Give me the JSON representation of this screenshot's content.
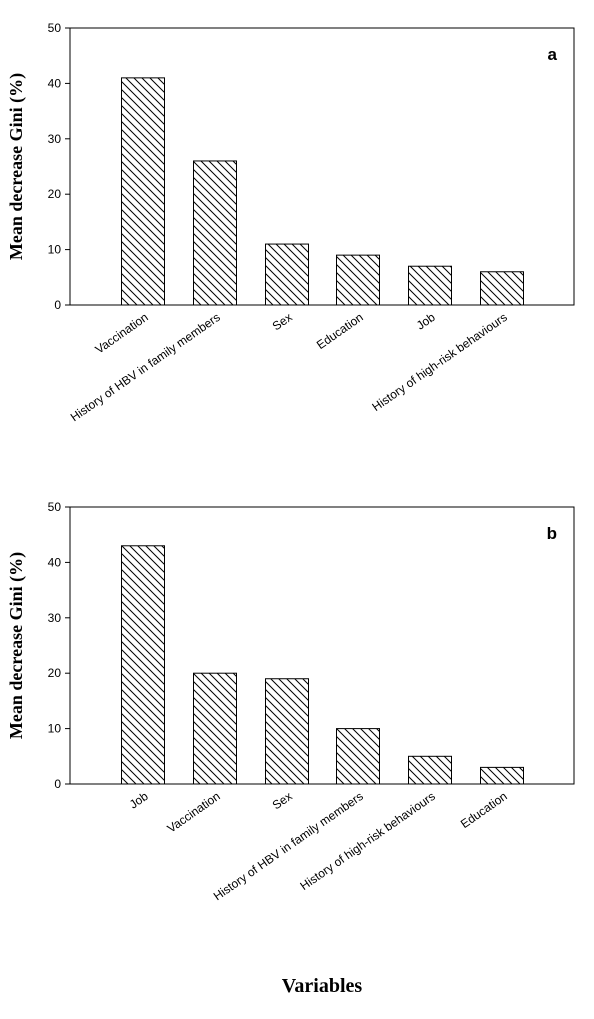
{
  "chart_data": [
    {
      "type": "bar",
      "panel_label": "a",
      "categories": [
        "Vaccination",
        "History of HBV in family members",
        "Sex",
        "Education",
        "Job",
        "History of high-risk behaviours"
      ],
      "values": [
        41,
        26,
        11,
        9,
        7,
        6
      ],
      "ylabel": "Mean decrease Gini (%)",
      "xlabel": "",
      "ylim": [
        0,
        50
      ],
      "yticks": [
        0,
        10,
        20,
        30,
        40,
        50
      ],
      "bar_fill": "diagonal-hatch",
      "grid": false
    },
    {
      "type": "bar",
      "panel_label": "b",
      "categories": [
        "Job",
        "Vaccination",
        "Sex",
        "History of HBV in family members",
        "History of high-risk behaviours",
        "Education"
      ],
      "values": [
        43,
        20,
        19,
        10,
        5,
        3
      ],
      "ylabel": "Mean decrease Gini (%)",
      "xlabel": "Variables",
      "ylim": [
        0,
        50
      ],
      "yticks": [
        0,
        10,
        20,
        30,
        40,
        50
      ],
      "bar_fill": "diagonal-hatch",
      "grid": false
    }
  ],
  "colors": {
    "axis": "#000000",
    "bar_edge": "#000000",
    "hatch": "#000000",
    "background": "#ffffff"
  }
}
